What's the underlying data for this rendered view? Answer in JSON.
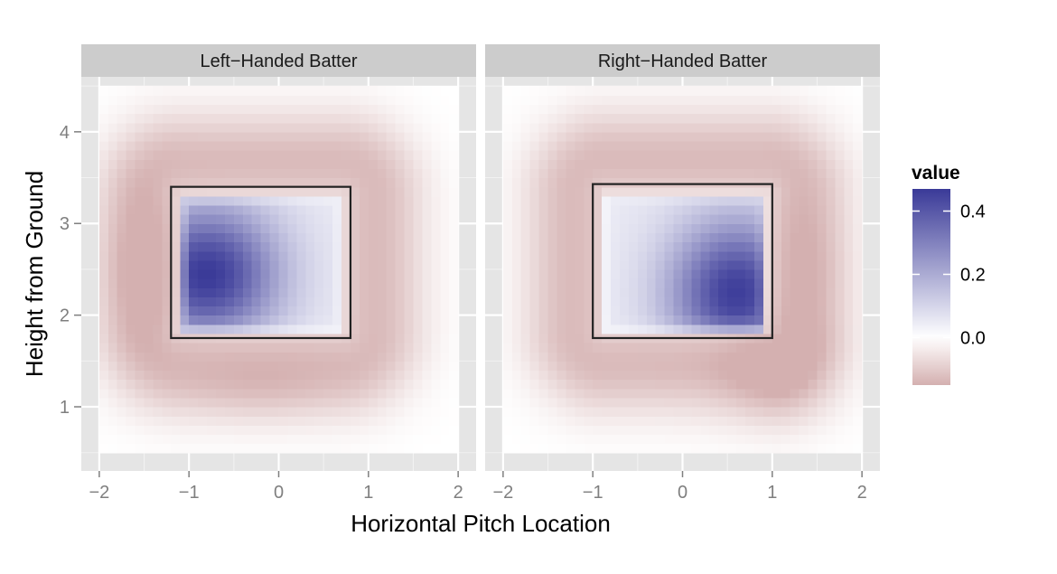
{
  "chart_data": {
    "type": "heatmap",
    "title": "",
    "xlabel": "Horizontal Pitch Location",
    "ylabel": "Height from Ground",
    "xlim": [
      -2.2,
      2.2
    ],
    "ylim": [
      0.3,
      4.6
    ],
    "x_ticks": [
      -2,
      -1,
      0,
      1,
      2
    ],
    "x_tick_labels": [
      "−2",
      "−1",
      "0",
      "1",
      "2"
    ],
    "y_ticks": [
      1,
      2,
      3,
      4
    ],
    "y_tick_labels": [
      "1",
      "2",
      "3",
      "4"
    ],
    "grid": true,
    "legend": {
      "title": "value",
      "position": "right",
      "range": [
        -0.15,
        0.47
      ],
      "ticks": [
        0.0,
        0.2,
        0.4
      ],
      "tick_labels": [
        "0.0",
        "0.2",
        "0.4"
      ],
      "low_color": "#d4b0b0",
      "mid_color": "#ffffff",
      "high_color": "#3a3a98"
    },
    "grid_cells": {
      "x_range": [
        -2.0,
        2.0
      ],
      "y_range": [
        0.5,
        4.5
      ],
      "nx": 40,
      "ny": 40
    },
    "panels": [
      {
        "label": "Left−Handed Batter",
        "strike_zone": {
          "x": [
            -1.2,
            0.8
          ],
          "y": [
            1.75,
            3.4
          ]
        },
        "field": {
          "zone_center": [
            -0.2,
            2.575
          ],
          "zone_half": [
            0.9,
            0.73
          ],
          "peak_value": 0.47,
          "peak_at": [
            -0.8,
            2.45
          ],
          "peak_spread": [
            0.8,
            0.75
          ],
          "edge_value": 0.05,
          "halo_value": -0.13,
          "halo_spread": 0.55,
          "halo_offset": 0.38,
          "halo_emphasis": [
            {
              "at": [
                -1.6,
                2.5
              ],
              "spread": [
                0.45,
                0.9
              ],
              "value": 0.05
            },
            {
              "at": [
                -0.2,
                1.15
              ],
              "spread": [
                0.9,
                0.35
              ],
              "value": 0.03
            }
          ]
        }
      },
      {
        "label": "Right−Handed Batter",
        "strike_zone": {
          "x": [
            -1.0,
            1.0
          ],
          "y": [
            1.75,
            3.43
          ]
        },
        "field": {
          "zone_center": [
            0.05,
            2.59
          ],
          "zone_half": [
            0.9,
            0.74
          ],
          "peak_value": 0.46,
          "peak_at": [
            0.6,
            2.25
          ],
          "peak_spread": [
            0.75,
            0.8
          ],
          "edge_value": 0.05,
          "halo_value": -0.13,
          "halo_spread": 0.55,
          "halo_offset": 0.38,
          "halo_emphasis": [
            {
              "at": [
                1.1,
                1.35
              ],
              "spread": [
                0.6,
                0.55
              ],
              "value": 0.07
            },
            {
              "at": [
                1.4,
                2.5
              ],
              "spread": [
                0.45,
                0.8
              ],
              "value": 0.03
            }
          ]
        }
      }
    ]
  }
}
